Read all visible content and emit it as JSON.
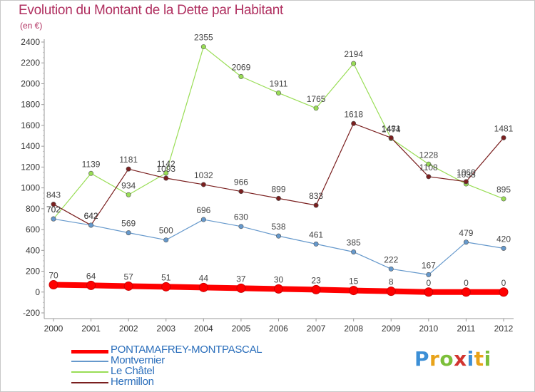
{
  "header": {
    "title": "Evolution du Montant de la Dette par Habitant",
    "unit": "(en €)"
  },
  "logo": {
    "text": "Proxiti"
  },
  "chart_data": {
    "type": "line",
    "title": "Evolution du Montant de la Dette par Habitant",
    "subtitle": "(en €)",
    "xlabel": "",
    "ylabel": "",
    "x": [
      "2000",
      "2001",
      "2002",
      "2003",
      "2004",
      "2005",
      "2006",
      "2007",
      "2008",
      "2009",
      "2010",
      "2011",
      "2012"
    ],
    "ylim": [
      -200,
      2400
    ],
    "yticks": [
      -200,
      0,
      200,
      400,
      600,
      800,
      1000,
      1200,
      1400,
      1600,
      1800,
      2000,
      2200,
      2400
    ],
    "grid": false,
    "legend_position": "bottom-left",
    "series": [
      {
        "name": "PONTAMAFREY-MONTPASCAL",
        "color": "#ff0000",
        "values": [
          70,
          64,
          57,
          51,
          44,
          37,
          30,
          23,
          15,
          8,
          0,
          0,
          0
        ]
      },
      {
        "name": "Montvernier",
        "color": "#6699cc",
        "values": [
          702,
          642,
          569,
          500,
          696,
          630,
          538,
          461,
          385,
          222,
          167,
          479,
          420
        ]
      },
      {
        "name": "Le Châtel",
        "color": "#99dd55",
        "values": [
          702,
          1139,
          934,
          1142,
          2355,
          2069,
          1911,
          1765,
          2194,
          1474,
          1228,
          1038,
          895
        ]
      },
      {
        "name": "Hermillon",
        "color": "#7a1f1f",
        "values": [
          843,
          642,
          1181,
          1093,
          1032,
          966,
          899,
          833,
          1618,
          1481,
          1108,
          1060,
          1481
        ]
      }
    ]
  }
}
